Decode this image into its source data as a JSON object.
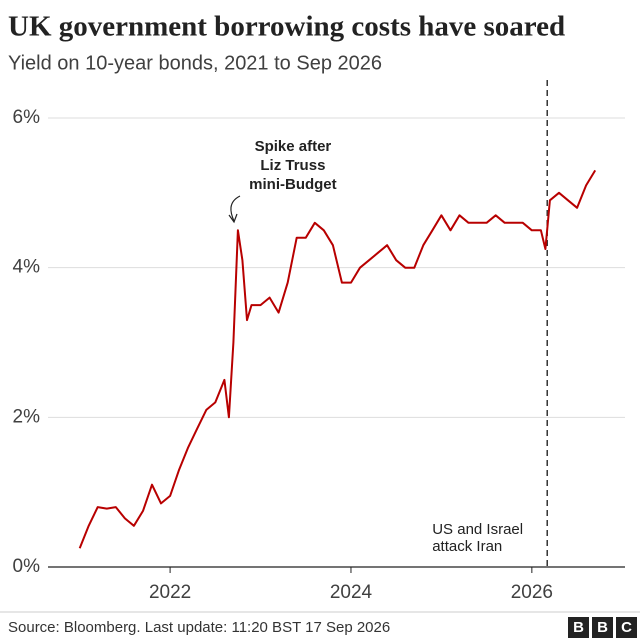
{
  "chart_data": {
    "type": "line",
    "title": "UK government borrowing costs have soared",
    "subtitle": "Yield on 10-year bonds, 2021 to Sep 2026",
    "x": [
      2021.0,
      2021.1,
      2021.2,
      2021.3,
      2021.4,
      2021.5,
      2021.6,
      2021.7,
      2021.8,
      2021.9,
      2022.0,
      2022.1,
      2022.2,
      2022.3,
      2022.4,
      2022.5,
      2022.6,
      2022.65,
      2022.7,
      2022.75,
      2022.8,
      2022.85,
      2022.9,
      2023.0,
      2023.1,
      2023.2,
      2023.3,
      2023.4,
      2023.5,
      2023.6,
      2023.7,
      2023.8,
      2023.9,
      2024.0,
      2024.1,
      2024.2,
      2024.3,
      2024.4,
      2024.5,
      2024.6,
      2024.7,
      2024.8,
      2024.9,
      2025.0,
      2025.1,
      2025.2,
      2025.3,
      2025.4,
      2025.5,
      2025.6,
      2025.7,
      2025.8,
      2025.9,
      2026.0,
      2026.1,
      2026.15,
      2026.2,
      2026.3,
      2026.4,
      2026.5,
      2026.6,
      2026.7
    ],
    "values": [
      0.25,
      0.55,
      0.8,
      0.78,
      0.8,
      0.65,
      0.55,
      0.75,
      1.1,
      0.85,
      0.95,
      1.3,
      1.6,
      1.85,
      2.1,
      2.2,
      2.5,
      2.0,
      3.0,
      4.5,
      4.1,
      3.3,
      3.5,
      3.5,
      3.6,
      3.4,
      3.8,
      4.4,
      4.4,
      4.6,
      4.5,
      4.3,
      3.8,
      3.8,
      4.0,
      4.1,
      4.2,
      4.3,
      4.1,
      4.0,
      4.0,
      4.3,
      4.5,
      4.7,
      4.5,
      4.7,
      4.6,
      4.6,
      4.6,
      4.7,
      4.6,
      4.6,
      4.6,
      4.5,
      4.5,
      4.25,
      4.9,
      5.0,
      4.9,
      4.8,
      5.1,
      5.3
    ],
    "color": "#b80000",
    "xlim": [
      2020.65,
      2027.03
    ],
    "xticks": [
      2022,
      2024,
      2026
    ],
    "ylim": [
      0,
      6
    ],
    "yticks": [
      {
        "value": 0,
        "label": "0%"
      },
      {
        "value": 2,
        "label": "2%"
      },
      {
        "value": 4,
        "label": "4%"
      },
      {
        "value": 6,
        "label": "6%"
      }
    ],
    "grid": true,
    "annotations": [
      {
        "text": [
          "Spike after",
          "Liz Truss",
          "mini-Budget"
        ],
        "x": 2022.75,
        "y": 4.5
      },
      {
        "text": [
          "US and Israel",
          "attack Iran"
        ],
        "x": 2026.17
      }
    ],
    "source": "Source: Bloomberg. Last update: 11:20 BST 17 Sep 2026",
    "logo": [
      "B",
      "B",
      "C"
    ]
  }
}
